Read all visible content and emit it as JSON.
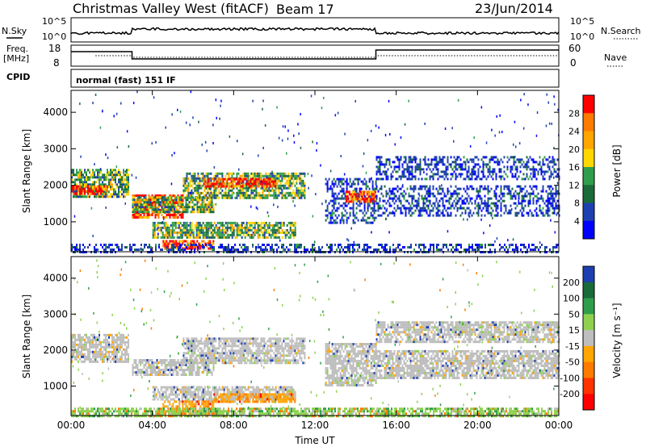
{
  "header": {
    "station": "Christmas Valley West (fitACF)",
    "beam": "Beam 17",
    "date": "23/Jun/2014"
  },
  "top_panels": {
    "nsky_label": "N.Sky",
    "nsky_ticks": [
      "10^5",
      "10^0"
    ],
    "nsearch_label": "N.Search",
    "nsearch_ticks": [
      "10^5",
      "10^0"
    ],
    "freq_label": "Freq.",
    "freq_unit": "[MHz]",
    "freq_ticks": [
      "18",
      "8"
    ],
    "nave_label": "Nave",
    "nave_ticks": [
      "60",
      "0"
    ],
    "cpid_label": "CPID",
    "cpid_value": "normal (fast) 151 IF"
  },
  "chart_data": [
    {
      "type": "heatmap",
      "title": "",
      "xlabel": "",
      "ylabel": "Slant Range [km]",
      "xlim": [
        0,
        24
      ],
      "ylim": [
        180,
        4600
      ],
      "x_ticks": [
        "00:00",
        "04:00",
        "08:00",
        "12:00",
        "16:00",
        "20:00",
        "00:00"
      ],
      "y_ticks": [
        1000,
        2000,
        3000,
        4000
      ],
      "colorbar": {
        "label": "Power [dB]",
        "ticks": [
          "28",
          "24",
          "20",
          "16",
          "12",
          "8",
          "4"
        ],
        "colors": [
          "#ff0000",
          "#ff7a00",
          "#ffa500",
          "#ffd700",
          "#2f9e4a",
          "#1a6b3a",
          "#1e3fb0",
          "#0000ff"
        ]
      },
      "regions": [
        {
          "t0": 0.0,
          "t1": 2.8,
          "r0": 1700,
          "r1": 2450,
          "level": "mid"
        },
        {
          "t0": 0.0,
          "t1": 1.8,
          "r0": 1750,
          "r1": 2000,
          "level": "high"
        },
        {
          "t0": 3.0,
          "t1": 5.5,
          "r0": 1100,
          "r1": 1750,
          "level": "high"
        },
        {
          "t0": 3.0,
          "t1": 7.0,
          "r0": 1300,
          "r1": 1700,
          "level": "mid"
        },
        {
          "t0": 5.5,
          "t1": 11.5,
          "r0": 1650,
          "r1": 2350,
          "level": "mid"
        },
        {
          "t0": 6.5,
          "t1": 10.0,
          "r0": 1950,
          "r1": 2200,
          "level": "high"
        },
        {
          "t0": 4.0,
          "t1": 11.0,
          "r0": 600,
          "r1": 1000,
          "level": "mid"
        },
        {
          "t0": 4.5,
          "t1": 7.0,
          "r0": 250,
          "r1": 500,
          "level": "high"
        },
        {
          "t0": 12.5,
          "t1": 15.0,
          "r0": 1000,
          "r1": 2200,
          "level": "low"
        },
        {
          "t0": 13.5,
          "t1": 15.0,
          "r0": 1550,
          "r1": 1850,
          "level": "high"
        },
        {
          "t0": 15.0,
          "t1": 24.0,
          "r0": 2200,
          "r1": 2800,
          "level": "low"
        },
        {
          "t0": 15.0,
          "t1": 24.0,
          "r0": 1200,
          "r1": 2000,
          "level": "low"
        },
        {
          "t0": 0.0,
          "t1": 24.0,
          "r0": 180,
          "r1": 400,
          "level": "low"
        }
      ]
    },
    {
      "type": "heatmap",
      "title": "",
      "xlabel": "Time UT",
      "ylabel": "Slant Range [km]",
      "xlim": [
        0,
        24
      ],
      "ylim": [
        180,
        4600
      ],
      "x_ticks": [
        "00:00",
        "04:00",
        "08:00",
        "12:00",
        "16:00",
        "20:00",
        "00:00"
      ],
      "y_ticks": [
        1000,
        2000,
        3000,
        4000
      ],
      "colorbar": {
        "label": "Velocity [m s⁻¹]",
        "ticks": [
          "200",
          "100",
          "50",
          "15",
          "-15",
          "-50",
          "-100",
          "-200"
        ],
        "colors": [
          "#1e3fb0",
          "#1a6b3a",
          "#2f9e4a",
          "#8fd14f",
          "#bebebe",
          "#ffa500",
          "#ff7a00",
          "#ff3300",
          "#ff0000"
        ]
      },
      "regions": [
        {
          "t0": 0.0,
          "t1": 2.8,
          "r0": 1700,
          "r1": 2450,
          "level": "ground"
        },
        {
          "t0": 3.0,
          "t1": 7.0,
          "r0": 1300,
          "r1": 1750,
          "level": "ground"
        },
        {
          "t0": 5.5,
          "t1": 11.5,
          "r0": 1650,
          "r1": 2350,
          "level": "ground"
        },
        {
          "t0": 4.0,
          "t1": 11.0,
          "r0": 600,
          "r1": 1000,
          "level": "ground"
        },
        {
          "t0": 4.5,
          "t1": 7.0,
          "r0": 250,
          "r1": 600,
          "level": "neg"
        },
        {
          "t0": 7.0,
          "t1": 11.0,
          "r0": 550,
          "r1": 800,
          "level": "neg"
        },
        {
          "t0": 12.5,
          "t1": 15.0,
          "r0": 1000,
          "r1": 2200,
          "level": "ground"
        },
        {
          "t0": 15.0,
          "t1": 24.0,
          "r0": 2200,
          "r1": 2800,
          "level": "ground"
        },
        {
          "t0": 15.0,
          "t1": 24.0,
          "r0": 1200,
          "r1": 2000,
          "level": "ground"
        },
        {
          "t0": 0.0,
          "t1": 24.0,
          "r0": 180,
          "r1": 400,
          "level": "pos"
        }
      ]
    }
  ]
}
